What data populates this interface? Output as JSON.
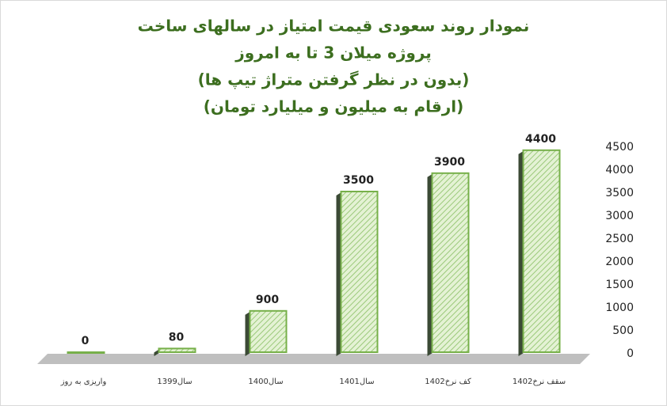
{
  "chart_data": {
    "type": "bar",
    "title_lines": [
      "نمودار روند سعودی قیمت امتیاز در سالهای ساخت",
      "پروژه میلان 3 تا به امروز",
      "(بدون در نظر گرفتن متراژ تیپ ها)",
      "(ارقام به میلیون و میلیارد تومان)"
    ],
    "categories": [
      "واریزی به روز",
      "سال1399",
      "سال1400",
      "سال1401",
      "کف نرخ1402",
      "سقف نرخ1402"
    ],
    "values": [
      0,
      80,
      900,
      3500,
      3900,
      4400
    ],
    "color": "#77b04a",
    "ylim": [
      0,
      4500
    ],
    "yticks": [
      0,
      500,
      1000,
      1500,
      2000,
      2500,
      3000,
      3500,
      4000,
      4500
    ],
    "y_axis_side": "right"
  }
}
